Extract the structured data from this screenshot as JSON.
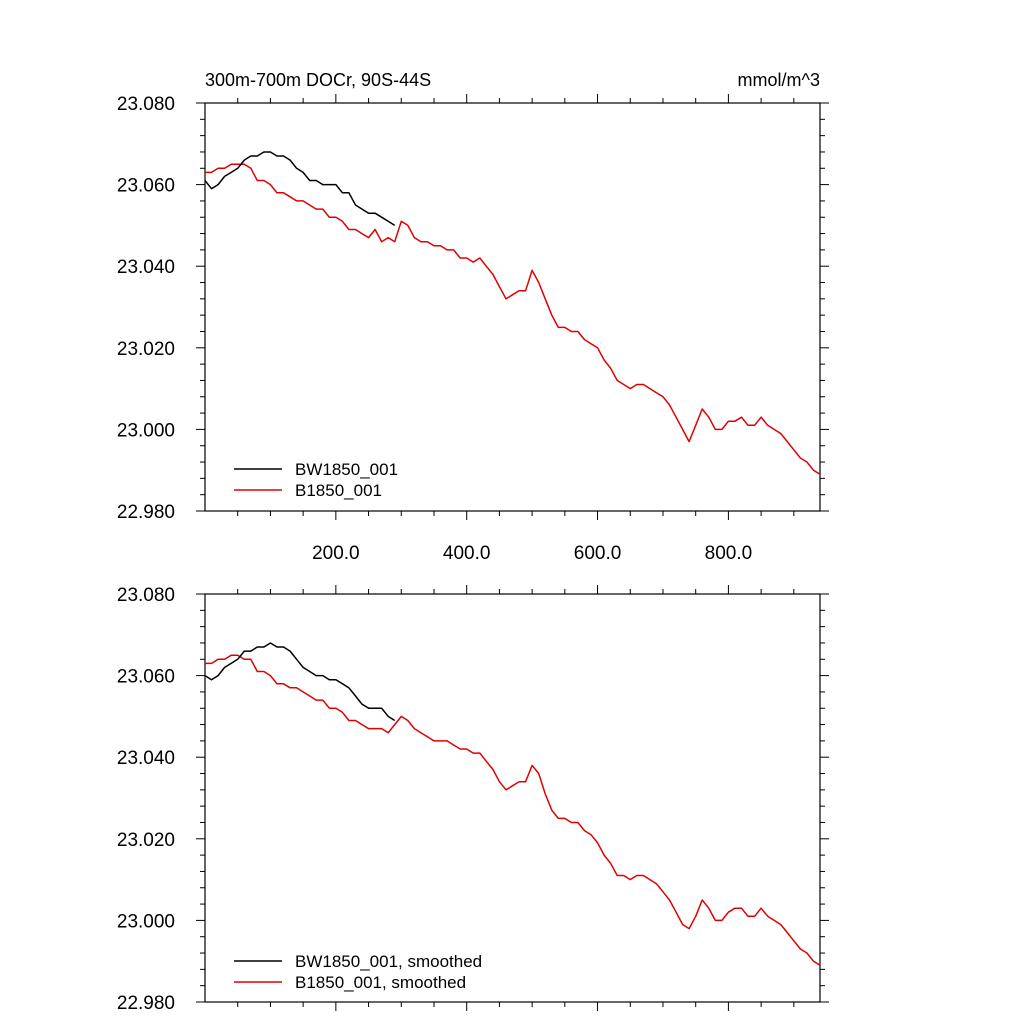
{
  "chart_data": [
    {
      "type": "line",
      "title": "300m-700m DOCr, 90S-44S",
      "units": "mmol/m^3",
      "xlim": [
        0,
        940
      ],
      "ylim": [
        22.98,
        23.08
      ],
      "xticks": [
        200,
        400,
        600,
        800
      ],
      "xtick_labels": [
        "200.0",
        "400.0",
        "600.0",
        "800.0"
      ],
      "yticks": [
        22.98,
        23.0,
        23.02,
        23.04,
        23.06,
        23.08
      ],
      "ytick_labels": [
        "22.980",
        "23.000",
        "23.020",
        "23.040",
        "23.060",
        "23.080"
      ],
      "grid": false,
      "legend_position": "bottom-left",
      "series": [
        {
          "name": "BW1850_001",
          "color": "#000000",
          "x": [
            0,
            10,
            20,
            30,
            40,
            50,
            60,
            70,
            80,
            90,
            100,
            110,
            120,
            130,
            140,
            150,
            160,
            170,
            180,
            190,
            200,
            210,
            220,
            230,
            240,
            250,
            260,
            270,
            280,
            290
          ],
          "y": [
            23.061,
            23.059,
            23.06,
            23.062,
            23.063,
            23.064,
            23.066,
            23.067,
            23.067,
            23.068,
            23.068,
            23.067,
            23.067,
            23.066,
            23.064,
            23.063,
            23.061,
            23.061,
            23.06,
            23.06,
            23.06,
            23.058,
            23.058,
            23.055,
            23.054,
            23.053,
            23.053,
            23.052,
            23.051,
            23.05
          ]
        },
        {
          "name": "B1850_001",
          "color": "#e00000",
          "x": [
            0,
            10,
            20,
            30,
            40,
            50,
            60,
            70,
            80,
            90,
            100,
            110,
            120,
            130,
            140,
            150,
            160,
            170,
            180,
            190,
            200,
            210,
            220,
            230,
            240,
            250,
            260,
            270,
            280,
            290,
            300,
            310,
            320,
            330,
            340,
            350,
            360,
            370,
            380,
            390,
            400,
            410,
            420,
            430,
            440,
            450,
            460,
            470,
            480,
            490,
            500,
            510,
            520,
            530,
            540,
            550,
            560,
            570,
            580,
            590,
            600,
            610,
            620,
            630,
            640,
            650,
            660,
            670,
            680,
            690,
            700,
            710,
            720,
            730,
            740,
            750,
            760,
            770,
            780,
            790,
            800,
            810,
            820,
            830,
            840,
            850,
            860,
            870,
            880,
            890,
            900,
            910,
            920,
            930,
            940
          ],
          "y": [
            23.063,
            23.063,
            23.064,
            23.064,
            23.065,
            23.065,
            23.065,
            23.064,
            23.061,
            23.061,
            23.06,
            23.058,
            23.058,
            23.057,
            23.056,
            23.056,
            23.055,
            23.054,
            23.054,
            23.052,
            23.052,
            23.051,
            23.049,
            23.049,
            23.048,
            23.047,
            23.049,
            23.046,
            23.047,
            23.046,
            23.051,
            23.05,
            23.047,
            23.046,
            23.046,
            23.045,
            23.045,
            23.044,
            23.044,
            23.042,
            23.042,
            23.041,
            23.042,
            23.04,
            23.038,
            23.035,
            23.032,
            23.033,
            23.034,
            23.034,
            23.039,
            23.036,
            23.032,
            23.028,
            23.025,
            23.025,
            23.024,
            23.024,
            23.022,
            23.021,
            23.02,
            23.017,
            23.015,
            23.012,
            23.011,
            23.01,
            23.011,
            23.011,
            23.01,
            23.009,
            23.008,
            23.006,
            23.003,
            23.0,
            22.997,
            23.001,
            23.005,
            23.003,
            23.0,
            23.0,
            23.002,
            23.002,
            23.003,
            23.001,
            23.001,
            23.003,
            23.001,
            23.0,
            22.999,
            22.997,
            22.995,
            22.993,
            22.992,
            22.99,
            22.989
          ]
        }
      ]
    },
    {
      "type": "line",
      "xlim": [
        0,
        940
      ],
      "ylim": [
        22.98,
        23.08
      ],
      "yticks": [
        22.98,
        23.0,
        23.02,
        23.04,
        23.06,
        23.08
      ],
      "ytick_labels": [
        "22.980",
        "23.000",
        "23.020",
        "23.040",
        "23.060",
        "23.080"
      ],
      "grid": false,
      "legend_position": "bottom-left",
      "series": [
        {
          "name": "BW1850_001, smoothed",
          "color": "#000000",
          "x": [
            0,
            10,
            20,
            30,
            40,
            50,
            60,
            70,
            80,
            90,
            100,
            110,
            120,
            130,
            140,
            150,
            160,
            170,
            180,
            190,
            200,
            210,
            220,
            230,
            240,
            250,
            260,
            270,
            280,
            290
          ],
          "y": [
            23.06,
            23.059,
            23.06,
            23.062,
            23.063,
            23.064,
            23.066,
            23.066,
            23.067,
            23.067,
            23.068,
            23.067,
            23.067,
            23.066,
            23.064,
            23.062,
            23.061,
            23.06,
            23.06,
            23.059,
            23.059,
            23.058,
            23.057,
            23.055,
            23.053,
            23.052,
            23.052,
            23.052,
            23.05,
            23.049
          ]
        },
        {
          "name": "B1850_001, smoothed",
          "color": "#e00000",
          "x": [
            0,
            10,
            20,
            30,
            40,
            50,
            60,
            70,
            80,
            90,
            100,
            110,
            120,
            130,
            140,
            150,
            160,
            170,
            180,
            190,
            200,
            210,
            220,
            230,
            240,
            250,
            260,
            270,
            280,
            290,
            300,
            310,
            320,
            330,
            340,
            350,
            360,
            370,
            380,
            390,
            400,
            410,
            420,
            430,
            440,
            450,
            460,
            470,
            480,
            490,
            500,
            510,
            520,
            530,
            540,
            550,
            560,
            570,
            580,
            590,
            600,
            610,
            620,
            630,
            640,
            650,
            660,
            670,
            680,
            690,
            700,
            710,
            720,
            730,
            740,
            750,
            760,
            770,
            780,
            790,
            800,
            810,
            820,
            830,
            840,
            850,
            860,
            870,
            880,
            890,
            900,
            910,
            920,
            930,
            940
          ],
          "y": [
            23.063,
            23.063,
            23.064,
            23.064,
            23.065,
            23.065,
            23.064,
            23.064,
            23.061,
            23.061,
            23.06,
            23.058,
            23.058,
            23.057,
            23.057,
            23.056,
            23.055,
            23.054,
            23.054,
            23.052,
            23.052,
            23.051,
            23.049,
            23.049,
            23.048,
            23.047,
            23.047,
            23.047,
            23.046,
            23.048,
            23.05,
            23.049,
            23.047,
            23.046,
            23.045,
            23.044,
            23.044,
            23.044,
            23.043,
            23.042,
            23.042,
            23.041,
            23.041,
            23.039,
            23.037,
            23.034,
            23.032,
            23.033,
            23.034,
            23.034,
            23.038,
            23.036,
            23.031,
            23.027,
            23.025,
            23.025,
            23.024,
            23.024,
            23.022,
            23.021,
            23.019,
            23.016,
            23.014,
            23.011,
            23.011,
            23.01,
            23.011,
            23.011,
            23.01,
            23.009,
            23.007,
            23.005,
            23.002,
            22.999,
            22.998,
            23.001,
            23.005,
            23.003,
            23.0,
            23.0,
            23.002,
            23.003,
            23.003,
            23.001,
            23.001,
            23.003,
            23.001,
            23.0,
            22.999,
            22.997,
            22.995,
            22.993,
            22.992,
            22.99,
            22.989
          ]
        }
      ]
    }
  ]
}
